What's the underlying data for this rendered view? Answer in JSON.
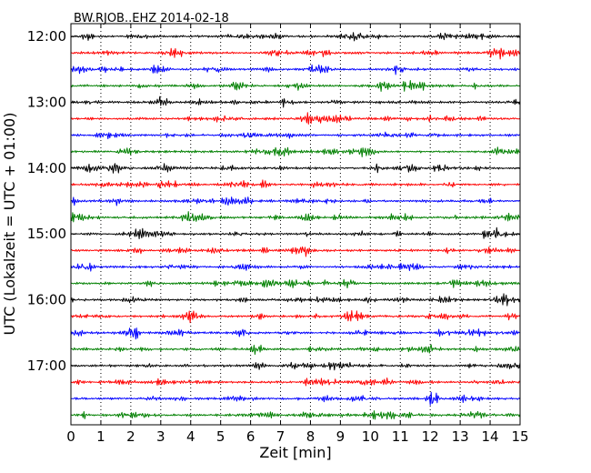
{
  "chart_data": {
    "type": "line",
    "title": "BW.RJOB..EHZ 2014-02-18",
    "xlabel": "Zeit  [min]",
    "ylabel": "UTC (Lokalzeit = UTC + 01:00)",
    "xlim": [
      0,
      15
    ],
    "x_ticks": [
      "0",
      "1",
      "2",
      "3",
      "4",
      "5",
      "6",
      "7",
      "8",
      "9",
      "10",
      "11",
      "12",
      "13",
      "14",
      "15"
    ],
    "grid": "vertical dotted at each minute",
    "row_interval_minutes": 15,
    "row_colors": [
      "#000000",
      "#ff0000",
      "#0000ff",
      "#008000"
    ],
    "y_ticks": [
      {
        "label": "12:00",
        "row": 0
      },
      {
        "label": "13:00",
        "row": 4
      },
      {
        "label": "14:00",
        "row": 8
      },
      {
        "label": "15:00",
        "row": 12
      },
      {
        "label": "16:00",
        "row": 16
      },
      {
        "label": "17:00",
        "row": 20
      }
    ],
    "rows": [
      {
        "start": "12:00"
      },
      {
        "start": "12:15"
      },
      {
        "start": "12:30"
      },
      {
        "start": "12:45"
      },
      {
        "start": "13:00"
      },
      {
        "start": "13:15"
      },
      {
        "start": "13:30"
      },
      {
        "start": "13:45"
      },
      {
        "start": "14:00"
      },
      {
        "start": "14:15"
      },
      {
        "start": "14:30"
      },
      {
        "start": "14:45"
      },
      {
        "start": "15:00"
      },
      {
        "start": "15:15"
      },
      {
        "start": "15:30"
      },
      {
        "start": "15:45"
      },
      {
        "start": "16:00"
      },
      {
        "start": "16:15"
      },
      {
        "start": "16:30"
      },
      {
        "start": "16:45"
      },
      {
        "start": "17:00"
      },
      {
        "start": "17:15"
      },
      {
        "start": "17:30"
      },
      {
        "start": "17:45"
      }
    ]
  }
}
